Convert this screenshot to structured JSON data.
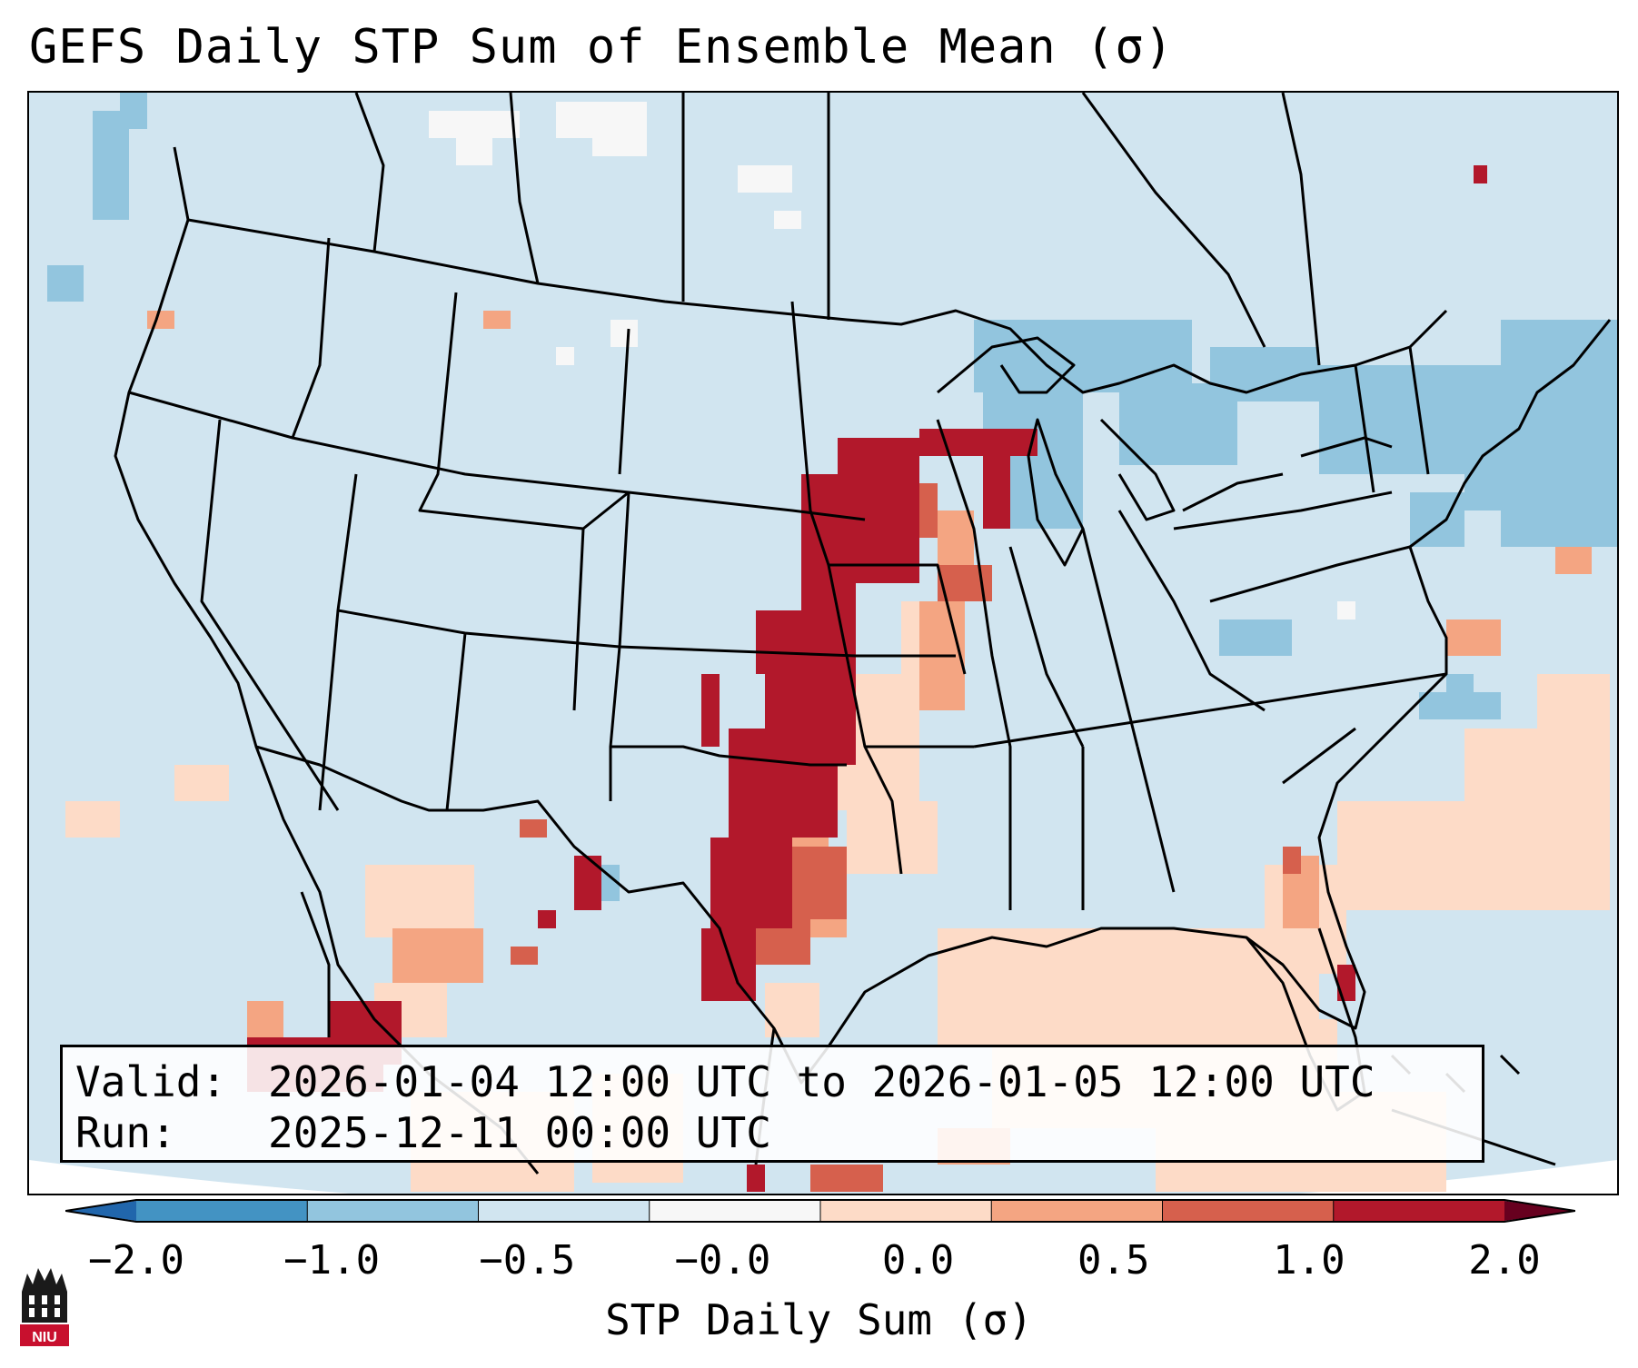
{
  "title": "GEFS Daily STP Sum of Ensemble Mean (σ)",
  "info": {
    "valid_label": "Valid:",
    "valid_value": "2026-01-04 12:00 UTC to 2026-01-05 12:00 UTC",
    "run_label": "Run:",
    "run_value": "2025-12-11 00:00 UTC"
  },
  "colorbar": {
    "label": "STP Daily Sum (σ)",
    "ticks": [
      "−2.0",
      "−1.0",
      "−0.5",
      "−0.0",
      "0.0",
      "0.5",
      "1.0",
      "2.0"
    ],
    "colors": [
      "#4393c3",
      "#92c5de",
      "#d1e5f0",
      "#f7f7f7",
      "#fddbc7",
      "#f4a582",
      "#d6604d",
      "#b2182b"
    ],
    "under_color": "#2166ac",
    "over_color": "#67001f"
  },
  "logo": {
    "text": "NIU"
  },
  "map": {
    "background_color": "#d1e5f0",
    "border_color": "#000000"
  }
}
